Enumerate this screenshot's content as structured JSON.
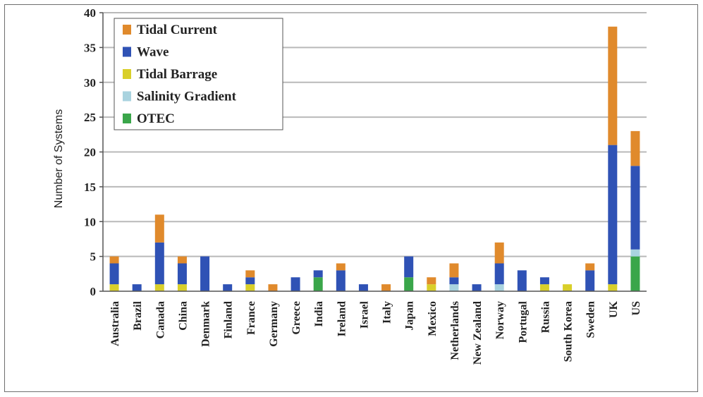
{
  "chart_data": {
    "type": "bar",
    "stacked": true,
    "ylabel": "Number of Systems",
    "xlabel": "",
    "ylim": [
      0,
      40
    ],
    "yticks": [
      0,
      5,
      10,
      15,
      20,
      25,
      30,
      35,
      40
    ],
    "grid": true,
    "legend_position": "top-left",
    "categories": [
      "Australia",
      "Brazil",
      "Canada",
      "China",
      "Denmark",
      "Finland",
      "France",
      "Germany",
      "Greece",
      "India",
      "Ireland",
      "Israel",
      "Italy",
      "Japan",
      "Mexico",
      "Netherlands",
      "New Zealand",
      "Norway",
      "Portugal",
      "Russia",
      "South Korea",
      "Sweden",
      "UK",
      "US"
    ],
    "series": [
      {
        "name": "OTEC",
        "color": "#3aa64a",
        "values": [
          0,
          0,
          0,
          0,
          0,
          0,
          0,
          0,
          0,
          2,
          0,
          0,
          0,
          2,
          0,
          0,
          0,
          0,
          0,
          0,
          0,
          0,
          0,
          5
        ]
      },
      {
        "name": "Salinity Gradient",
        "color": "#a9d3df",
        "values": [
          0,
          0,
          0,
          0,
          0,
          0,
          0,
          0,
          0,
          0,
          0,
          0,
          0,
          0,
          0,
          1,
          0,
          1,
          0,
          0,
          0,
          0,
          0,
          1
        ]
      },
      {
        "name": "Tidal Barrage",
        "color": "#d9cf2a",
        "values": [
          1,
          0,
          1,
          1,
          0,
          0,
          1,
          0,
          0,
          0,
          0,
          0,
          0,
          0,
          1,
          0,
          0,
          0,
          0,
          1,
          1,
          0,
          1,
          0
        ]
      },
      {
        "name": "Wave",
        "color": "#2f52b5",
        "values": [
          3,
          1,
          6,
          3,
          5,
          1,
          1,
          0,
          2,
          1,
          3,
          1,
          0,
          3,
          0,
          1,
          1,
          3,
          3,
          1,
          0,
          3,
          20,
          12
        ]
      },
      {
        "name": "Tidal Current",
        "color": "#e08a2c",
        "values": [
          1,
          0,
          4,
          1,
          0,
          0,
          1,
          1,
          0,
          0,
          1,
          0,
          1,
          0,
          1,
          2,
          0,
          3,
          0,
          0,
          0,
          1,
          17,
          5
        ]
      }
    ],
    "legend_order": [
      "Tidal Current",
      "Wave",
      "Tidal Barrage",
      "Salinity Gradient",
      "OTEC"
    ],
    "colors": {
      "grid": "#b9b9b9",
      "axis": "#555555"
    }
  }
}
